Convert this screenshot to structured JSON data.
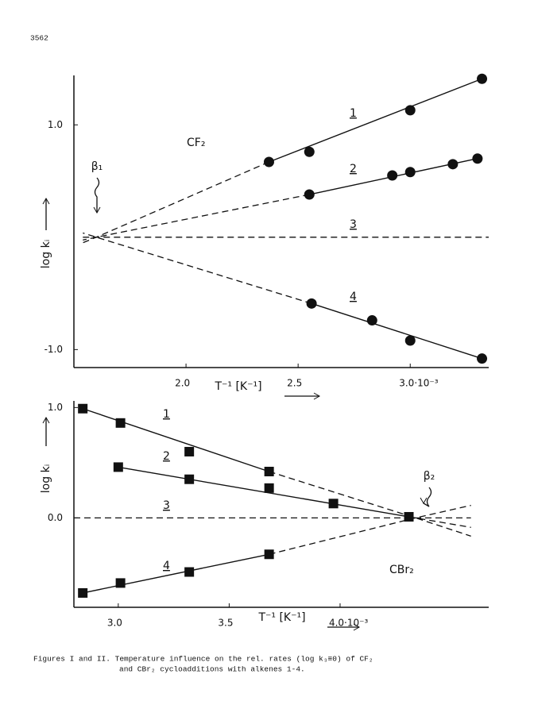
{
  "page_number": "3562",
  "caption": [
    "Figures I and II.  Temperature influence on the rel. rates (log k₃≡0) of CF₂",
    "and CBr₂ cycloadditions with alkenes 1-4."
  ],
  "chart_data": [
    {
      "type": "scatter",
      "marker": "circle",
      "label": "CF₂",
      "x_label": "T⁻¹ [K⁻¹]",
      "y_label": "log kᵢ",
      "xlim": [
        1.5,
        3.35
      ],
      "ylim": [
        -1.16,
        1.44
      ],
      "xticks": [
        {
          "value": 2,
          "label": "2.0"
        },
        {
          "value": 2.5,
          "label": "2.5"
        },
        {
          "value": 3,
          "label": "3.0·10⁻³"
        }
      ],
      "yticks": [
        {
          "value": 1,
          "label": "1.0"
        },
        {
          "value": -1,
          "label": "-1.0"
        }
      ],
      "annotation": {
        "text": "β₁",
        "x": 1.6,
        "y": 0
      },
      "series": [
        {
          "name": "1",
          "x": [
            2.37,
            2.55,
            3.0,
            3.32
          ],
          "values": [
            0.67,
            0.76,
            1.13,
            1.41
          ]
        },
        {
          "name": "2",
          "x": [
            2.55,
            2.92,
            3.0,
            3.19,
            3.3
          ],
          "values": [
            0.38,
            0.55,
            0.58,
            0.65,
            0.7
          ]
        },
        {
          "name": "3",
          "x": [],
          "values": [],
          "line_value": 0
        },
        {
          "name": "4",
          "x": [
            2.56,
            2.83,
            3.0,
            3.32
          ],
          "values": [
            -0.59,
            -0.74,
            -0.92,
            -1.08
          ]
        }
      ]
    },
    {
      "type": "scatter",
      "marker": "square",
      "label": "CBr₂",
      "x_label": "T⁻¹ [K⁻¹]",
      "y_label": "log kᵢ",
      "xlim": [
        2.8,
        4.67
      ],
      "ylim": [
        -0.81,
        1.06
      ],
      "xticks": [
        {
          "value": 3,
          "label": "3.0"
        },
        {
          "value": 3.5,
          "label": "3.5"
        },
        {
          "value": 4,
          "label": "4.0·10⁻³"
        }
      ],
      "yticks": [
        {
          "value": 1,
          "label": "1.0"
        },
        {
          "value": 0,
          "label": "0.0"
        }
      ],
      "annotation": {
        "text": "β₂",
        "x": 4.34,
        "y": 0
      },
      "series": [
        {
          "name": "1",
          "x": [
            2.84,
            3.01,
            3.32,
            3.68
          ],
          "values": [
            0.99,
            0.86,
            0.6,
            0.42
          ]
        },
        {
          "name": "2",
          "x": [
            3.0,
            3.32,
            3.68,
            3.97,
            4.31
          ],
          "values": [
            0.46,
            0.35,
            0.27,
            0.13,
            0.01
          ]
        },
        {
          "name": "3",
          "x": [],
          "values": [],
          "line_value": 0
        },
        {
          "name": "4",
          "x": [
            2.84,
            3.01,
            3.32,
            3.68
          ],
          "values": [
            -0.68,
            -0.59,
            -0.49,
            -0.33
          ]
        }
      ]
    }
  ]
}
